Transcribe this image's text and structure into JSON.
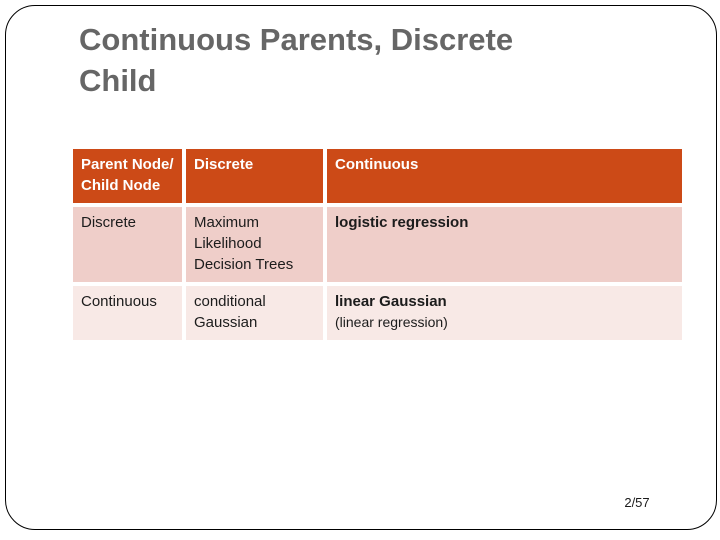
{
  "slide": {
    "title": {
      "line1": "Continuous Parents, Discrete",
      "line2": "Child"
    },
    "page_number": "2/57"
  },
  "table": {
    "header": {
      "col1_line1": "Parent Node/",
      "col1_line2": "Child Node",
      "col2": "Discrete",
      "col3": "Continuous"
    },
    "rows": [
      {
        "col1": "Discrete",
        "col2": "Maximum Likelihood Decision Trees",
        "col3": "logistic regression"
      },
      {
        "col1": "Continuous",
        "col2": "conditional Gaussian",
        "col3_line1": "linear Gaussian",
        "col3_line2": "(linear regression)"
      }
    ]
  },
  "colors": {
    "header_bg": "#CC4A17",
    "header_text": "#FFFFFF",
    "row_odd_bg": "#EFCEC9",
    "row_even_bg": "#F8E9E6",
    "title_text": "#666666",
    "body_text": "#1C1C1C",
    "border": "#000000"
  }
}
